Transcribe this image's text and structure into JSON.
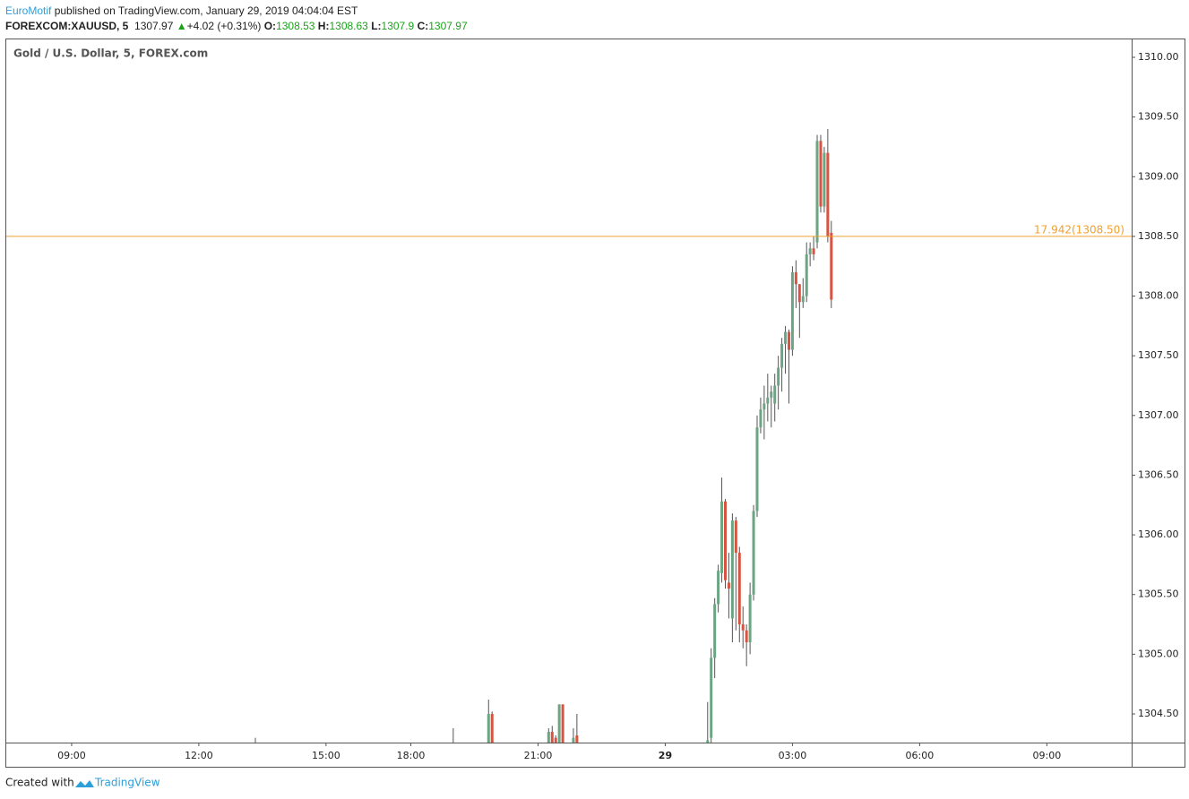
{
  "header": {
    "author": "EuroMotif",
    "published": "published on TradingView.com, January 29, 2019 04:04:04 EST",
    "symbol": "FOREXCOM:XAUUSD, 5",
    "last": 1307.97,
    "arrow": "▲",
    "change": "+4.02 (+0.31%)",
    "o_label": "O:",
    "o": 1308.53,
    "h_label": "H:",
    "h": 1308.63,
    "l_label": "L:",
    "l": 1307.9,
    "c_label": "C:",
    "c": 1307.97
  },
  "footer": {
    "created": "Created with",
    "brand": "TradingView"
  },
  "chart_data": {
    "type": "candlestick",
    "title": "Gold / U.S. Dollar, 5, FOREX.com",
    "up_color": "#6ba583",
    "down_color": "#d75442",
    "x": [
      52,
      108,
      118,
      119,
      135,
      136,
      137,
      138,
      139,
      142,
      143,
      180,
      181,
      182,
      183,
      184,
      185,
      186,
      187,
      188,
      189,
      190,
      191,
      192,
      193,
      194,
      195,
      196,
      197,
      198,
      199,
      200,
      201,
      202,
      203,
      204,
      205,
      206,
      207,
      208,
      209,
      210,
      211,
      212,
      213,
      214,
      215
    ],
    "open": [
      1304.2,
      1304.2,
      1304.26,
      1304.5,
      1304.26,
      1304.35,
      1304.3,
      1304.26,
      1304.58,
      1304.24,
      1304.32,
      1304.26,
      1304.3,
      1304.97,
      1305.42,
      1305.68,
      1306.28,
      1305.6,
      1305.3,
      1306.12,
      1305.85,
      1305.25,
      1305.2,
      1305.1,
      1305.5,
      1306.2,
      1306.9,
      1307.05,
      1307.1,
      1307.15,
      1307.1,
      1307.25,
      1307.4,
      1307.6,
      1307.7,
      1307.55,
      1308.2,
      1308.1,
      1307.95,
      1308.0,
      1308.35,
      1308.4,
      1308.45,
      1309.3,
      1308.75,
      1309.2,
      1308.53
    ],
    "high": [
      1304.3,
      1304.38,
      1304.62,
      1304.52,
      1304.38,
      1304.4,
      1304.32,
      1304.58,
      1304.58,
      1304.38,
      1304.5,
      1304.6,
      1305.05,
      1305.47,
      1305.75,
      1306.48,
      1306.3,
      1305.85,
      1306.18,
      1306.15,
      1305.9,
      1305.4,
      1305.25,
      1305.6,
      1306.25,
      1307.0,
      1307.15,
      1307.25,
      1307.35,
      1307.25,
      1307.35,
      1307.5,
      1307.65,
      1307.75,
      1307.72,
      1308.25,
      1308.3,
      1308.1,
      1308.15,
      1308.45,
      1308.45,
      1308.5,
      1309.35,
      1309.35,
      1309.25,
      1309.4,
      1308.63
    ],
    "low": [
      1304.1,
      1304.1,
      1304.2,
      1304.2,
      1304.2,
      1304.2,
      1304.2,
      1304.2,
      1304.2,
      1304.2,
      1304.2,
      1304.2,
      1304.25,
      1304.8,
      1305.35,
      1305.6,
      1305.55,
      1305.3,
      1305.1,
      1305.2,
      1305.1,
      1305.05,
      1304.9,
      1305.0,
      1305.45,
      1306.15,
      1306.85,
      1306.8,
      1306.95,
      1306.9,
      1306.95,
      1307.05,
      1307.2,
      1307.35,
      1307.1,
      1307.5,
      1307.9,
      1307.65,
      1307.9,
      1307.95,
      1308.25,
      1308.3,
      1308.4,
      1308.7,
      1308.7,
      1308.45,
      1307.9
    ],
    "close": [
      1304.22,
      1304.24,
      1304.5,
      1304.26,
      1304.35,
      1304.26,
      1304.24,
      1304.58,
      1304.26,
      1304.3,
      1304.26,
      1304.28,
      1304.97,
      1305.42,
      1305.7,
      1306.28,
      1305.62,
      1305.55,
      1306.12,
      1305.85,
      1305.25,
      1305.2,
      1305.1,
      1305.5,
      1306.2,
      1306.9,
      1307.05,
      1307.1,
      1307.15,
      1307.2,
      1307.25,
      1307.4,
      1307.6,
      1307.7,
      1307.55,
      1308.2,
      1308.1,
      1307.95,
      1308.0,
      1308.35,
      1308.4,
      1308.35,
      1309.3,
      1308.75,
      1309.2,
      1308.5,
      1307.97
    ],
    "hline": {
      "value": 1308.5,
      "label": "17.942(1308.50)",
      "color": "#f0a030"
    },
    "xlim": [
      -18.5,
      300
    ],
    "xticks": [
      {
        "value": 0,
        "label": "09:00"
      },
      {
        "value": 36,
        "label": "12:00"
      },
      {
        "value": 72,
        "label": "15:00"
      },
      {
        "value": 96,
        "label": "18:00"
      },
      {
        "value": 132,
        "label": "21:00"
      },
      {
        "value": 168,
        "label": "29"
      },
      {
        "value": 204,
        "label": "03:00"
      },
      {
        "value": 240,
        "label": "06:00"
      },
      {
        "value": 276,
        "label": "09:00"
      }
    ],
    "ylim": [
      1304.26,
      1310.15
    ],
    "yticks": [
      {
        "value": 1304.5,
        "label": "1304.50"
      },
      {
        "value": 1305,
        "label": "1305.00"
      },
      {
        "value": 1305.5,
        "label": "1305.50"
      },
      {
        "value": 1306,
        "label": "1306.00"
      },
      {
        "value": 1306.5,
        "label": "1306.50"
      },
      {
        "value": 1307,
        "label": "1307.00"
      },
      {
        "value": 1307.5,
        "label": "1307.50"
      },
      {
        "value": 1308,
        "label": "1308.00"
      },
      {
        "value": 1308.5,
        "label": "1308.50"
      },
      {
        "value": 1309,
        "label": "1309.00"
      },
      {
        "value": 1309.5,
        "label": "1309.50"
      },
      {
        "value": 1310,
        "label": "1310.00"
      }
    ]
  }
}
